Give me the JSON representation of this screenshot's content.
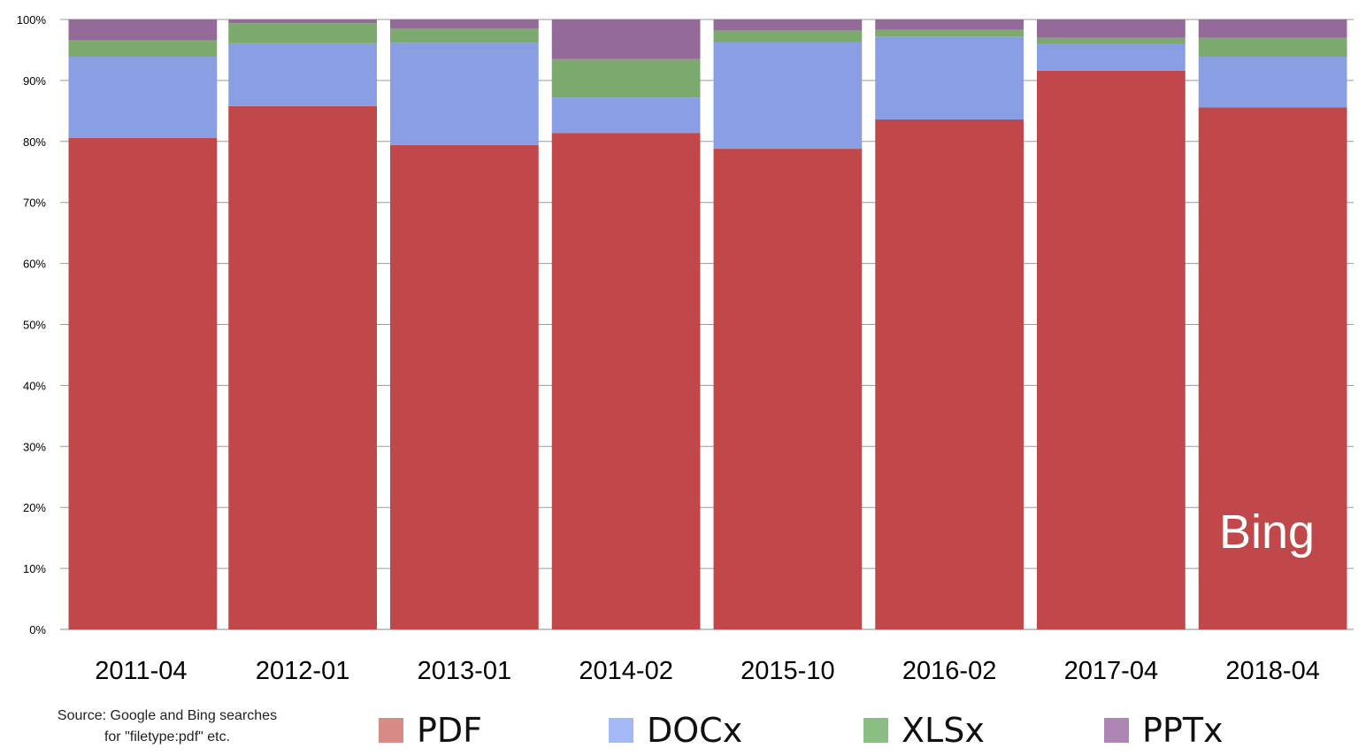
{
  "chart_data": {
    "type": "bar",
    "stacked": true,
    "normalized": true,
    "categories": [
      "2011-04",
      "2012-01",
      "2013-01",
      "2014-02",
      "2015-10",
      "2016-02",
      "2017-04",
      "2018-04"
    ],
    "series": [
      {
        "name": "PDF",
        "color": "#c0484a",
        "values": [
          80.6,
          85.8,
          79.4,
          81.4,
          78.8,
          83.6,
          91.6,
          85.6
        ]
      },
      {
        "name": "DOCx",
        "color": "#8a9ee3",
        "values": [
          13.3,
          10.3,
          16.8,
          5.8,
          17.5,
          13.6,
          4.4,
          8.3
        ]
      },
      {
        "name": "XLSx",
        "color": "#7caa6e",
        "values": [
          2.7,
          3.3,
          2.3,
          6.3,
          1.9,
          1.1,
          1.0,
          3.1
        ]
      },
      {
        "name": "PPTx",
        "color": "#946a98",
        "values": [
          3.4,
          0.6,
          1.5,
          6.5,
          1.8,
          1.7,
          3.0,
          3.0
        ]
      }
    ],
    "legend_colors": [
      "#d88a86",
      "#a3b8f5",
      "#8cbd84",
      "#ae86b3"
    ],
    "yticks": [
      "0%",
      "10%",
      "20%",
      "30%",
      "40%",
      "50%",
      "60%",
      "70%",
      "80%",
      "90%",
      "100%"
    ],
    "ylim": [
      0,
      100
    ],
    "grid": true,
    "legend_position": "bottom",
    "annotation": "Bing"
  },
  "source_note": {
    "line1": "Source: Google and Bing searches",
    "line2": "for \"filetype:pdf\" etc."
  }
}
